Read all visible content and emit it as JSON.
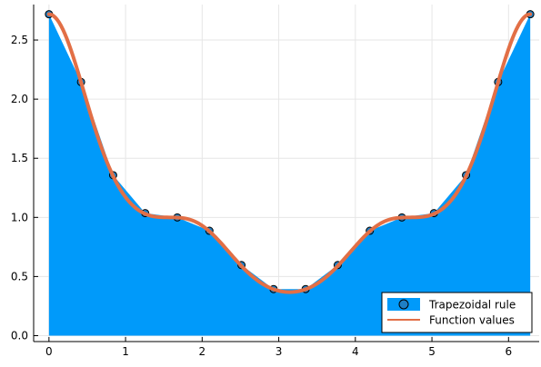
{
  "chart_data": {
    "type": "area",
    "title": "",
    "xlabel": "",
    "ylabel": "",
    "xlim": [
      -0.2,
      6.4
    ],
    "ylim": [
      -0.05,
      2.8
    ],
    "grid": true,
    "legend_position": "bottom-right",
    "x_ticks": [
      0,
      1,
      2,
      3,
      4,
      5,
      6
    ],
    "y_ticks": [
      0.0,
      0.5,
      1.0,
      1.5,
      2.0,
      2.5
    ],
    "x_tick_labels": [
      "0",
      "1",
      "2",
      "3",
      "4",
      "5",
      "6"
    ],
    "y_tick_labels": [
      "0.0",
      "0.5",
      "1.0",
      "1.5",
      "2.0",
      "2.5"
    ],
    "series": [
      {
        "name": "Trapezoidal rule",
        "kind": "filled-area-with-markers",
        "color": "#009AFA",
        "marker_color": "#1F7FC4",
        "x": [
          0,
          0.4189,
          0.8378,
          1.2566,
          1.6755,
          2.0944,
          2.5133,
          2.9322,
          3.351,
          3.7699,
          4.1888,
          4.6077,
          5.0265,
          5.4454,
          5.8643,
          6.2832
        ],
        "y": [
          2.718,
          2.145,
          1.357,
          1.036,
          1.0,
          0.887,
          0.597,
          0.394,
          0.394,
          0.597,
          0.887,
          1.0,
          1.036,
          1.357,
          2.145,
          2.718
        ]
      },
      {
        "name": "Function values",
        "kind": "line",
        "color": "#E26F46",
        "function": "exp(cos(x)^3)"
      }
    ]
  }
}
